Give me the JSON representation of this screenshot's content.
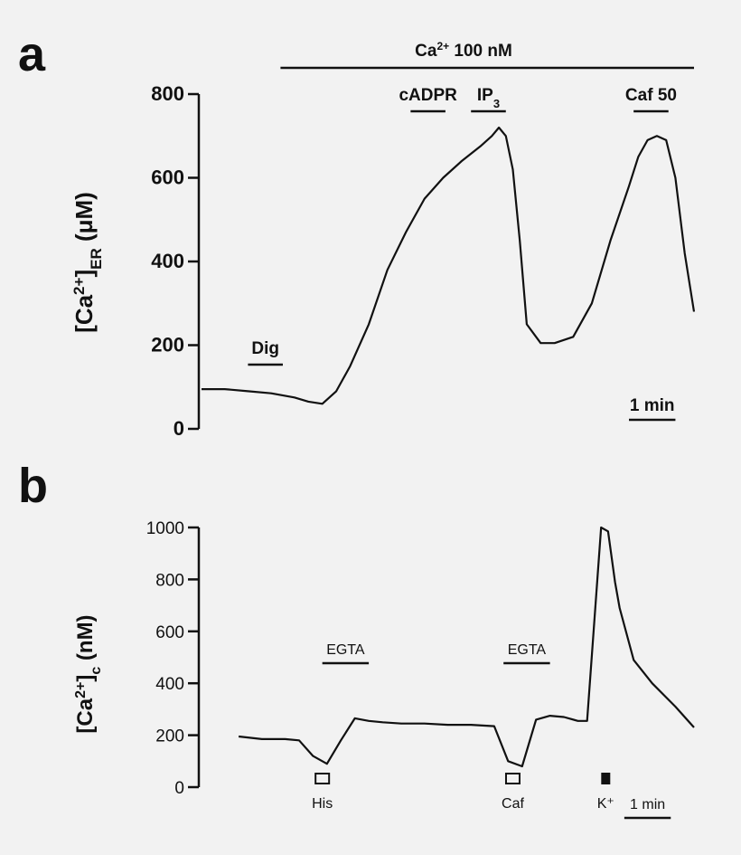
{
  "figure": {
    "panel_a_letter": "a",
    "panel_b_letter": "b",
    "background": "#f2f2f2",
    "ink": "#111111"
  },
  "chart_data": [
    {
      "type": "line",
      "panel": "a",
      "ylabel": {
        "prefix": "[Ca",
        "sup": "2+",
        "mid": "]",
        "sub": "ER",
        "suffix": " (μM)"
      },
      "ylim": [
        0,
        800
      ],
      "yticks": [
        0,
        200,
        400,
        600,
        800
      ],
      "xlim": [
        0,
        10.6
      ],
      "x_unit": "min",
      "grid": false,
      "scale_bar": {
        "label": "1 min",
        "start": 9.2,
        "length": 1
      },
      "series": [
        {
          "x": [
            0,
            0.5,
            1.0,
            1.5,
            2.0,
            2.3,
            2.6,
            2.9,
            3.2,
            3.6,
            4.0,
            4.4,
            4.8,
            5.2,
            5.6,
            6.0,
            6.25,
            6.4,
            6.55,
            6.7,
            6.85,
            7.0,
            7.3,
            7.6,
            8.0,
            8.4,
            8.8,
            9.2,
            9.4,
            9.6,
            9.8,
            10.0,
            10.2,
            10.4,
            10.6
          ],
          "y": [
            95,
            95,
            90,
            85,
            75,
            65,
            60,
            90,
            150,
            250,
            380,
            470,
            550,
            600,
            640,
            675,
            700,
            720,
            700,
            620,
            450,
            250,
            205,
            205,
            220,
            300,
            450,
            580,
            650,
            690,
            700,
            690,
            600,
            420,
            280
          ]
        }
      ],
      "bars": [
        {
          "label": "Dig",
          "start": 1.0,
          "end": 1.75
        },
        {
          "label": "cADPR",
          "start": 4.5,
          "end": 5.25
        },
        {
          "label_main": "IP",
          "label_sub": "3",
          "start": 5.8,
          "end": 6.55
        },
        {
          "label": "Caf 50",
          "start": 9.3,
          "end": 10.05
        }
      ],
      "top_bar": {
        "label_main": "Ca",
        "label_sup": "2+",
        "label_rest": "  100 nM",
        "start": 1.7,
        "end": 10.6
      }
    },
    {
      "type": "line",
      "panel": "b",
      "ylabel": {
        "prefix": "[Ca",
        "sup": "2+",
        "mid": "]",
        "sub": "c",
        "suffix": " (nM)"
      },
      "ylim": [
        0,
        1000
      ],
      "yticks": [
        0,
        200,
        400,
        600,
        800,
        1000
      ],
      "xlim": [
        0,
        10.6
      ],
      "x_unit": "min",
      "grid": false,
      "scale_bar": {
        "label": "1 min",
        "start": 9.1,
        "length": 1
      },
      "series": [
        {
          "x": [
            0.8,
            1.3,
            1.8,
            2.1,
            2.4,
            2.7,
            3.0,
            3.3,
            3.6,
            3.9,
            4.3,
            4.8,
            5.3,
            5.8,
            6.3,
            6.6,
            6.9,
            7.2,
            7.5,
            7.8,
            8.1,
            8.3,
            8.6,
            8.75,
            8.9,
            9.0,
            9.3,
            9.7,
            10.2,
            10.6
          ],
          "y": [
            195,
            185,
            185,
            180,
            120,
            90,
            180,
            265,
            255,
            250,
            245,
            245,
            240,
            240,
            235,
            100,
            80,
            260,
            275,
            270,
            255,
            255,
            1000,
            985,
            790,
            690,
            490,
            400,
            310,
            230
          ]
        }
      ],
      "bars": [
        {
          "label": "EGTA",
          "start": 2.6,
          "end": 3.6
        },
        {
          "label": "EGTA",
          "start": 6.5,
          "end": 7.5
        }
      ],
      "markers": [
        {
          "label": "His",
          "x": 2.6,
          "filled": false
        },
        {
          "label": "Caf",
          "x": 6.7,
          "filled": false
        },
        {
          "label": "K⁺",
          "x": 8.7,
          "filled": true
        }
      ]
    }
  ]
}
